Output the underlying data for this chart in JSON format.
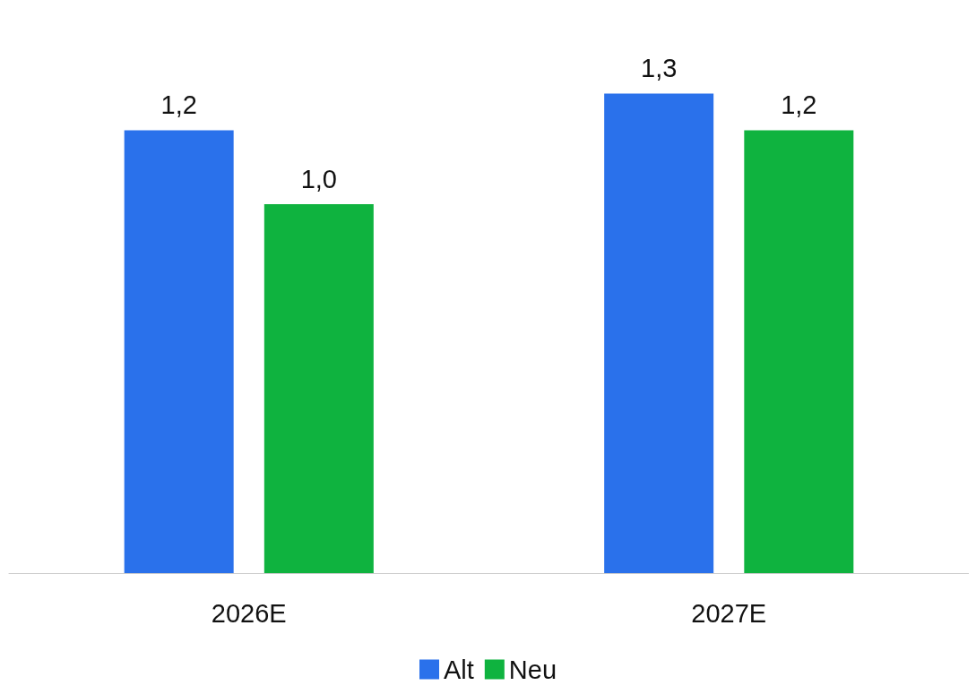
{
  "chart_data": {
    "type": "bar",
    "categories": [
      "2026E",
      "2027E"
    ],
    "series": [
      {
        "name": "Alt",
        "color": "#2a71eb",
        "values": [
          1.2,
          1.3
        ],
        "value_labels": [
          "1,2",
          "1,3"
        ]
      },
      {
        "name": "Neu",
        "color": "#0fb33f",
        "values": [
          1.0,
          1.2
        ],
        "value_labels": [
          "1,0",
          "1,2"
        ]
      }
    ],
    "legend": "bottom"
  }
}
